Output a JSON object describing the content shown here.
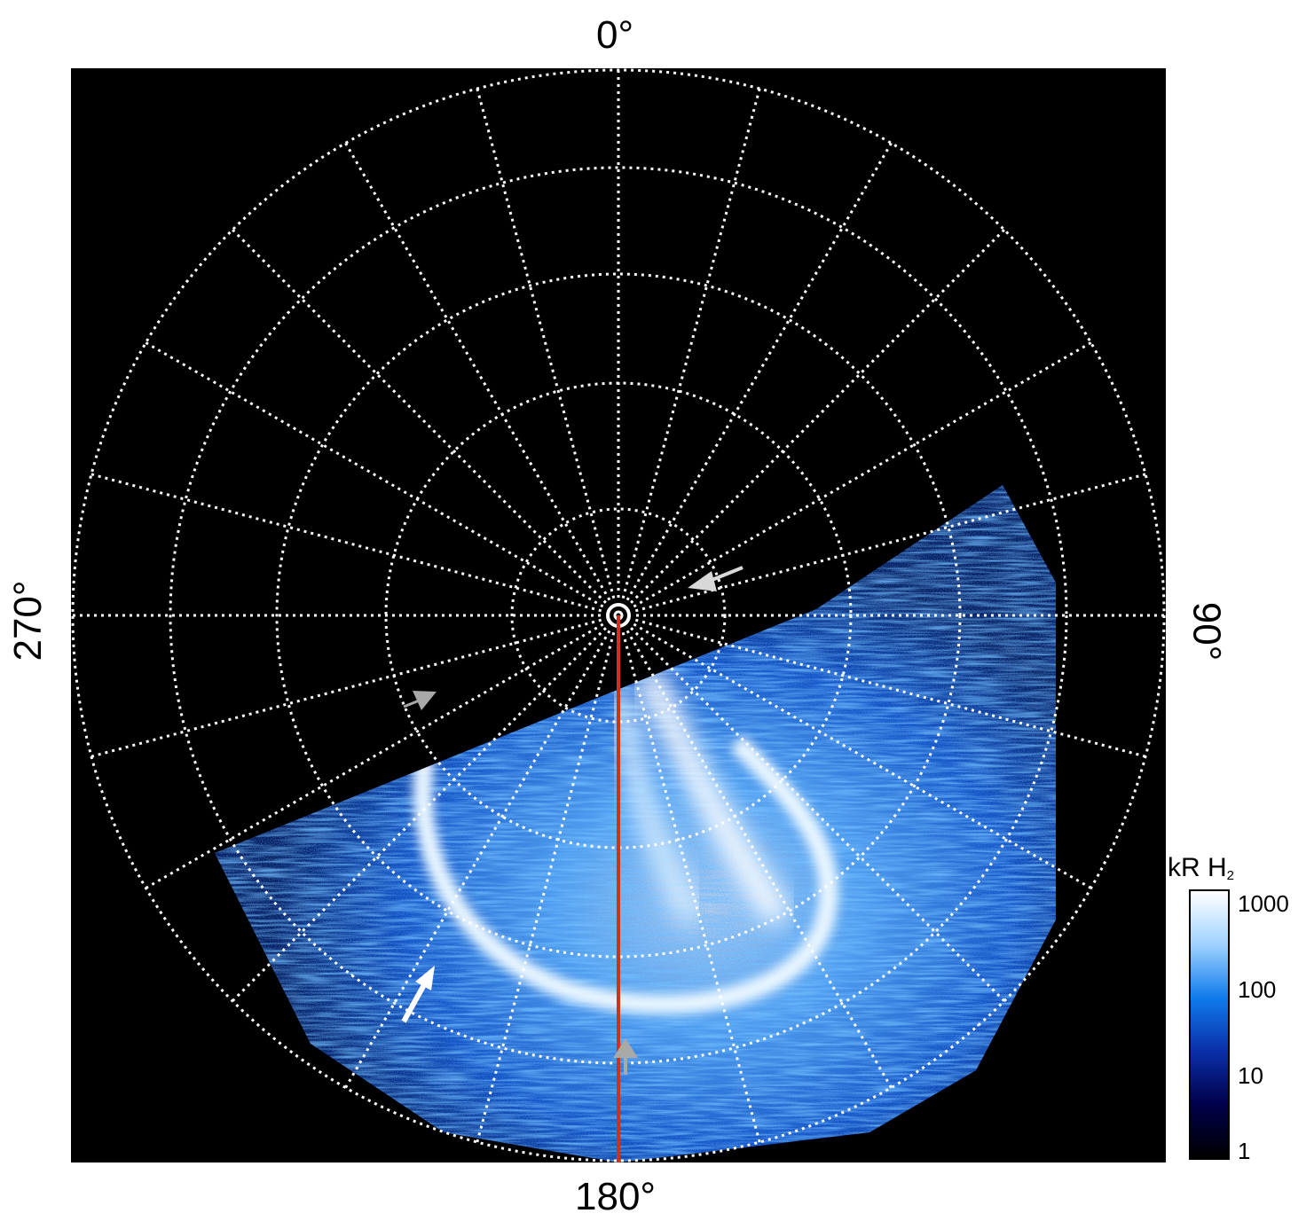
{
  "labels": {
    "top": "0°",
    "bottom": "180°",
    "left": "270°",
    "right": "90°"
  },
  "colorbar": {
    "title": "kR H",
    "title_sub": "2",
    "ticks": [
      "1000",
      "100",
      "10",
      "1"
    ],
    "colors": [
      "#000000",
      "#00004a",
      "#0a2fa8",
      "#0f7bec",
      "#9fd2ff",
      "#ffffff"
    ]
  },
  "colors": {
    "background": "#000000",
    "grid": "#ffffff",
    "meridian": "#cc3318",
    "arrow_white": "#ffffff",
    "arrow_grey": "#a9a9a9"
  }
}
